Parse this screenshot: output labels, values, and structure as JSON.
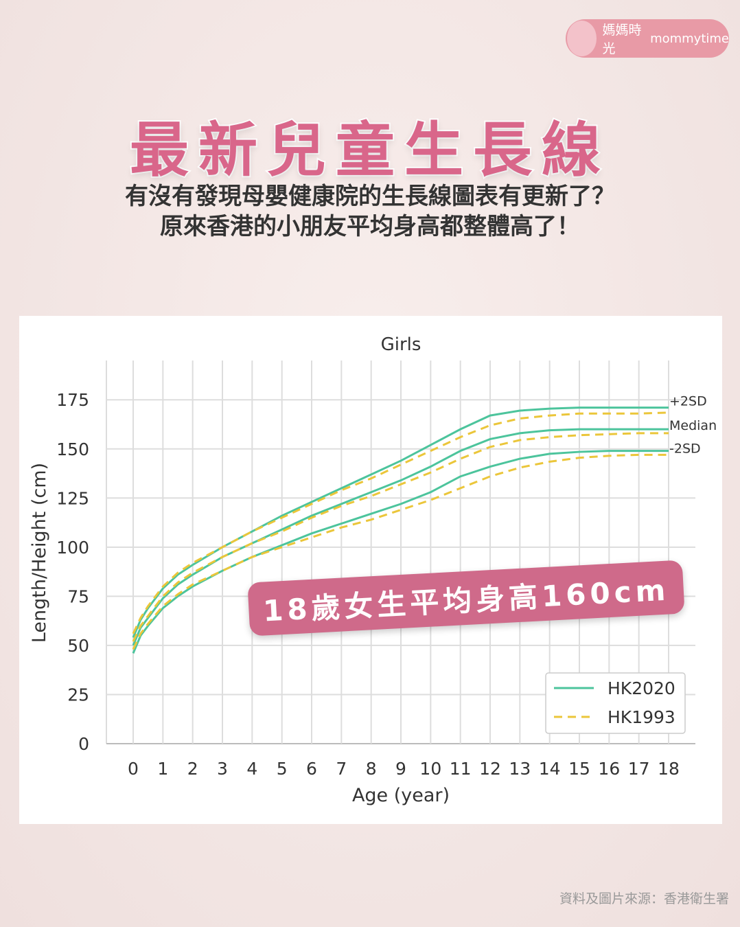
{
  "brand": {
    "name": "媽媽時光",
    "suffix": "mommytime"
  },
  "header": {
    "title": "最新兒童生長線",
    "subtitle_lines": [
      "有沒有發現母嬰健康院的生長線圖表有更新了？",
      "原來香港的小朋友平均身高都整體高了！"
    ]
  },
  "banner": "18歲女生平均身高160cm",
  "source": "資料及圖片來源：香港衛生署",
  "chart_data": {
    "type": "line",
    "title": "Girls",
    "x_label": "Age (year)",
    "y_label": "Length/Height (cm)",
    "x": [
      0,
      0.25,
      0.5,
      1,
      1.5,
      2,
      3,
      4,
      5,
      6,
      7,
      8,
      9,
      10,
      11,
      12,
      13,
      14,
      15,
      16,
      17,
      18
    ],
    "xlim": [
      -0.9,
      18.9
    ],
    "xticks": [
      0,
      1,
      2,
      3,
      4,
      5,
      6,
      7,
      8,
      9,
      10,
      11,
      12,
      13,
      14,
      15,
      16,
      17,
      18
    ],
    "ylim": [
      0,
      195
    ],
    "yticks": [
      0,
      25,
      50,
      75,
      100,
      125,
      150,
      175
    ],
    "grid": true,
    "legend": "lower right",
    "series": [
      {
        "name": "HK2020",
        "color": "#4cc49c",
        "style": "solid",
        "curves": [
          {
            "label": "+2SD",
            "values": [
              54,
              63,
              69,
              79,
              86,
              91,
              100,
              108,
              116,
              123,
              130,
              137,
              144,
              152,
              160,
              167,
              169.5,
              170.5,
              171,
              171,
              171,
              171
            ]
          },
          {
            "label": "Median",
            "values": [
              50,
              59,
              64,
              74,
              81,
              86,
              95,
              102,
              109,
              116,
              122,
              128,
              134,
              141,
              149,
              155,
              158,
              159.5,
              160,
              160,
              160,
              160
            ]
          },
          {
            "label": "-2SD",
            "values": [
              46,
              55,
              60,
              69,
              75,
              80,
              88,
              95,
              101,
              107,
              112,
              117,
              122,
              128,
              136,
              141,
              145,
              147.5,
              148.5,
              149,
              149,
              149
            ]
          }
        ]
      },
      {
        "name": "HK1993",
        "color": "#ebc63a",
        "style": "dashed",
        "curves": [
          {
            "values": [
              56,
              64,
              70,
              80,
              87,
              92,
              100,
              108,
              115,
              122,
              129,
              135,
              142,
              149,
              156,
              162,
              165.5,
              167,
              168,
              168,
              168,
              168.5
            ]
          },
          {
            "values": [
              52,
              60,
              65,
              75,
              82,
              87,
              95,
              102,
              108,
              115,
              121,
              126,
              132,
              138,
              145,
              151,
              154.5,
              156,
              157,
              157.5,
              158,
              158
            ]
          },
          {
            "values": [
              48,
              56,
              61,
              70,
              76,
              81,
              88,
              95,
              100,
              105,
              110,
              114,
              119,
              124,
              130,
              136,
              140.5,
              143.5,
              145.5,
              146.5,
              147,
              147
            ]
          }
        ]
      }
    ]
  }
}
